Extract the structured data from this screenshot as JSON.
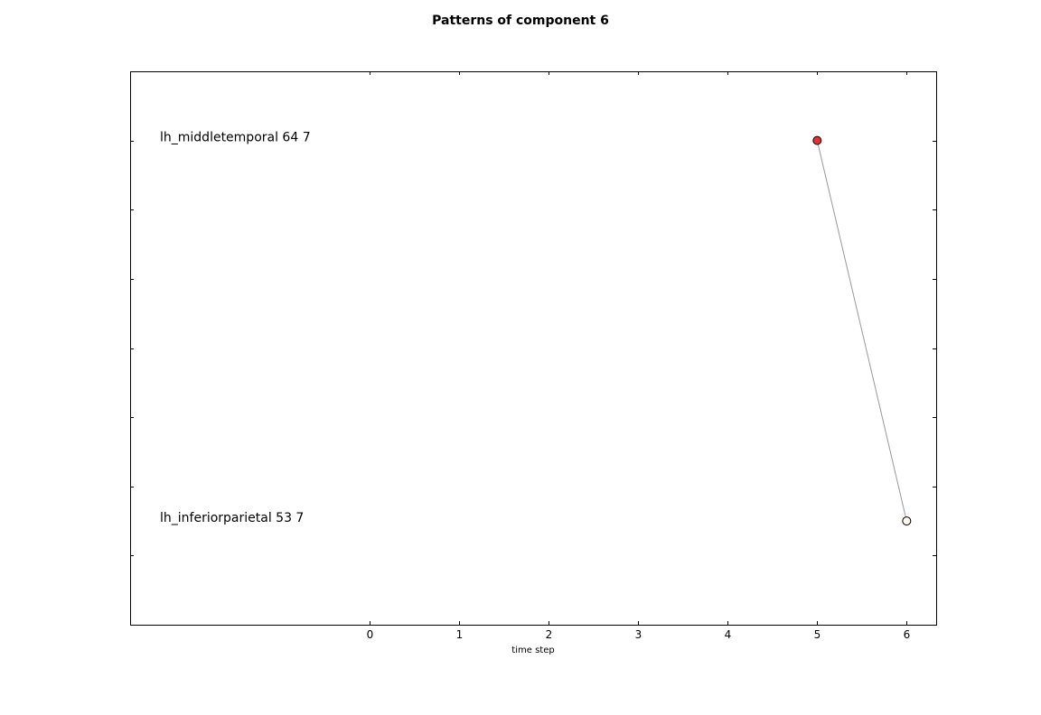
{
  "chart_data": {
    "type": "line",
    "title": "Patterns of component 6",
    "xlabel": "time step",
    "ylabel": "",
    "x_ticks": [
      "0",
      "1",
      "2",
      "3",
      "4",
      "5",
      "6"
    ],
    "xlim": [
      -2.68,
      6.33
    ],
    "ylim": [
      0,
      8
    ],
    "y_tick_positions": [
      1,
      2,
      3,
      4,
      5,
      6,
      7
    ],
    "grid": false,
    "series": [
      {
        "points": [
          {
            "x": 5,
            "y": 7,
            "label": "lh_middletemporal 64 7",
            "fill": "#e03232"
          },
          {
            "x": 6,
            "y": 1.5,
            "label": "lh_inferiorparietal 53 7",
            "fill": "#fdf7ee"
          }
        ],
        "line_color": "#999999"
      }
    ]
  }
}
